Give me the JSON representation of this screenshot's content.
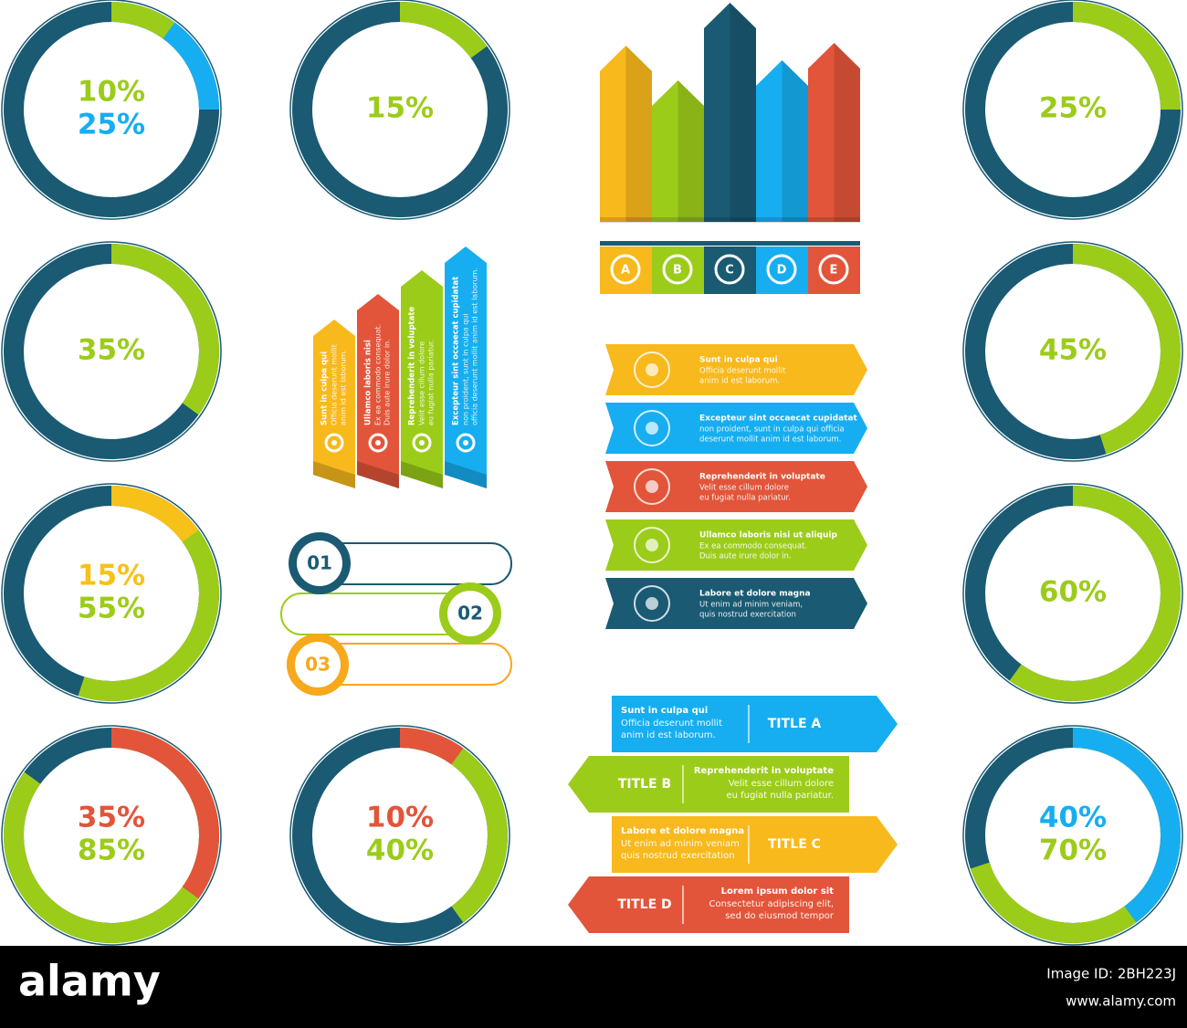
{
  "donuts": [
    {
      "segments": [
        {
          "value": 10,
          "label": "10%",
          "color": "#9ccc1a"
        },
        {
          "value": 25,
          "label": "25%",
          "color": "#16aef0"
        }
      ]
    },
    {
      "segments": [
        {
          "value": 15,
          "label": "15%",
          "color": "#9ccc1a"
        }
      ]
    },
    {
      "segments": [
        {
          "value": 25,
          "label": "25%",
          "color": "#9ccc1a"
        }
      ]
    },
    {
      "segments": [
        {
          "value": 35,
          "label": "35%",
          "color": "#9ccc1a"
        }
      ]
    },
    {
      "segments": [
        {
          "value": 45,
          "label": "45%",
          "color": "#9ccc1a"
        }
      ]
    },
    {
      "segments": [
        {
          "value": 15,
          "label": "15%",
          "color": "#f7c11a"
        },
        {
          "value": 55,
          "label": "55%",
          "color": "#9ccc1a"
        }
      ]
    },
    {
      "segments": [
        {
          "value": 60,
          "label": "60%",
          "color": "#9ccc1a"
        }
      ]
    },
    {
      "segments": [
        {
          "value": 35,
          "label": "35%",
          "color": "#e2553a"
        },
        {
          "value": 85,
          "label": "85%",
          "color": "#9ccc1a"
        }
      ]
    },
    {
      "segments": [
        {
          "value": 10,
          "label": "10%",
          "color": "#e2553a"
        },
        {
          "value": 40,
          "label": "40%",
          "color": "#9ccc1a"
        }
      ]
    },
    {
      "segments": [
        {
          "value": 40,
          "label": "40%",
          "color": "#16aef0"
        },
        {
          "value": 70,
          "label": "70%",
          "color": "#9ccc1a"
        }
      ]
    }
  ],
  "bar_arrows": {
    "letters": [
      "A",
      "B",
      "C",
      "D",
      "E"
    ]
  },
  "ribbons": [
    {
      "title": "Sunt in culpa qui",
      "lines": [
        "Officia deserunt mollit",
        "anim id est laborum."
      ]
    },
    {
      "title": "Ullamco laboris nisi",
      "lines": [
        "Ex ea commodo consequat.",
        "Duis aute irure dolor in."
      ]
    },
    {
      "title": "Reprehenderit in voluptate",
      "lines": [
        "Velit esse cillum dolore",
        "eu fugiat nulla pariatur."
      ]
    },
    {
      "title": "Excepteur sint occaecat cupidatat",
      "lines": [
        "non proident, sunt in culpa qui",
        "officia deserunt mollit anim id est laborum."
      ]
    }
  ],
  "steps": [
    "01",
    "02",
    "03"
  ],
  "arrow_list": [
    {
      "title": "Sunt in culpa qui",
      "lines": [
        "Officia deserunt mollit",
        "anim id est laborum."
      ]
    },
    {
      "title": "Excepteur sint occaecat cupidatat",
      "lines": [
        "non proident, sunt in culpa qui officia",
        "deserunt mollit anim id est laborum."
      ]
    },
    {
      "title": "Reprehenderit in voluptate",
      "lines": [
        "Velit esse cillum dolore",
        "eu fugiat nulla pariatur."
      ]
    },
    {
      "title": "Ullamco laboris nisi ut aliquip",
      "lines": [
        "Ex ea commodo consequat.",
        "Duis aute irure dolor in."
      ]
    },
    {
      "title": "Labore et dolore magna",
      "lines": [
        "Ut enim ad minim veniam,",
        "quis nostrud exercitation"
      ]
    }
  ],
  "title_arrows": [
    {
      "title": "TITLE A",
      "heading": "Sunt in culpa qui",
      "lines": [
        "Officia deserunt mollit",
        "anim id est laborum."
      ]
    },
    {
      "title": "TITLE B",
      "heading": "Reprehenderit in voluptate",
      "lines": [
        "Velit esse cillum dolore",
        "eu fugiat nulla pariatur."
      ]
    },
    {
      "title": "TITLE C",
      "heading": "Labore et dolore magna",
      "lines": [
        "Ut enim ad minim veniam",
        "quis nostrud exercitation"
      ]
    },
    {
      "title": "TITLE D",
      "heading": "Lorem ipsum dolor sit",
      "lines": [
        "Consectetur adipiscing elit,",
        "sed do eiusmod tempor"
      ]
    }
  ],
  "footer": {
    "logo": "alamy",
    "image_id": "Image ID: 2BH223J",
    "url": "www.alamy.com"
  }
}
